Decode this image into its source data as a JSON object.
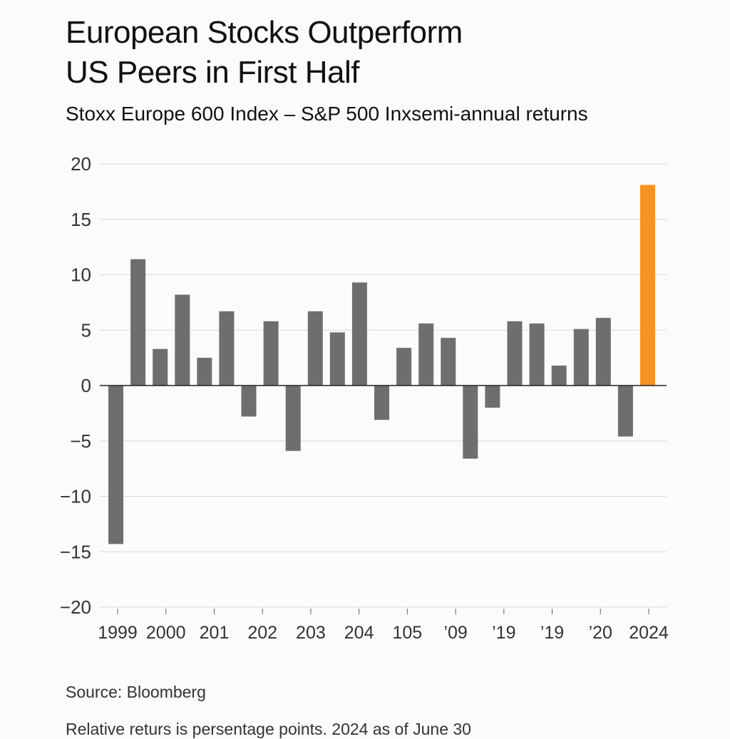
{
  "header": {
    "title_line1": "European Stocks Outperform",
    "title_line2": "US Peers in First Half",
    "subtitle": "Stoxx Europe 600 Index – S&P 500 Inxsemi-annual returns"
  },
  "footer": {
    "source": "Source: Bloomberg",
    "note": "Relative returs is persentage points. 2024 as of June 30"
  },
  "colors": {
    "bar": "#6e6e6e",
    "highlight": "#f7931e",
    "grid": "#d9d9d9",
    "zero_line": "#222222",
    "axis_text": "#333333"
  },
  "chart_data": {
    "type": "bar",
    "title": "European Stocks Outperform US Peers in First Half",
    "subtitle": "Stoxx Europe 600 Index – S&P 500 Inxsemi-annual returns",
    "xlabel": "",
    "ylabel": "",
    "ylim": [
      -20,
      20
    ],
    "yticks": [
      20,
      15,
      10,
      5,
      0,
      -5,
      -10,
      -15,
      -20
    ],
    "ytick_labels": [
      "20",
      "15",
      "10",
      "5",
      "0",
      "−5",
      "−10",
      "−15",
      "−20"
    ],
    "grid": true,
    "x_tick_labels": [
      "1999",
      "2000",
      "201",
      "202",
      "203",
      "204",
      "105",
      "’09",
      "’19",
      "’19",
      "’20",
      "2024"
    ],
    "values": [
      -14.3,
      11.4,
      3.3,
      8.2,
      2.5,
      6.7,
      -2.8,
      5.8,
      -5.9,
      6.7,
      4.8,
      9.3,
      -3.1,
      3.4,
      5.6,
      4.3,
      -6.6,
      -2.0,
      5.8,
      5.6,
      1.8,
      5.1,
      6.1,
      -4.6,
      18.1
    ],
    "highlight_index": 24
  }
}
